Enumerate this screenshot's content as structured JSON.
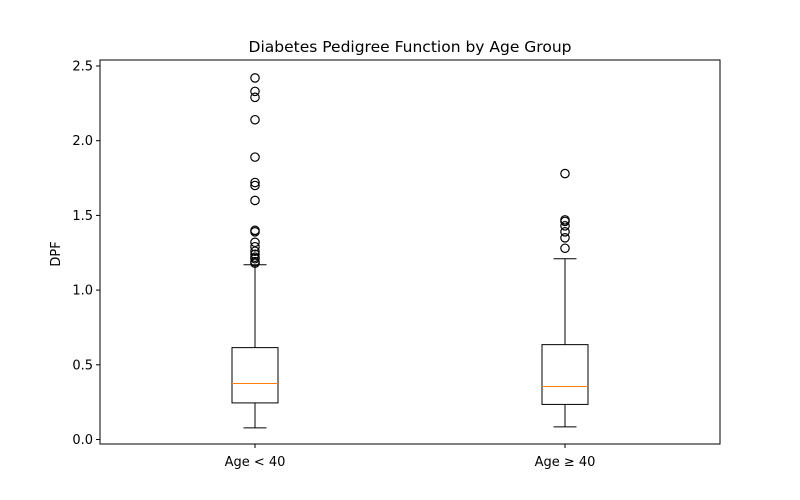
{
  "chart_data": {
    "type": "box",
    "title": "Diabetes Pedigree Function by Age Group",
    "xlabel": "",
    "ylabel": "DPF",
    "ylim": [
      -0.03,
      2.54
    ],
    "yticks": [
      "0.0",
      "0.5",
      "1.0",
      "1.5",
      "2.0",
      "2.5"
    ],
    "ytick_values": [
      0.0,
      0.5,
      1.0,
      1.5,
      2.0,
      2.5
    ],
    "grid": false,
    "colors": {
      "box": "#000000",
      "median": "#ff7f0e",
      "flier": "#000000"
    },
    "categories": [
      "Age < 40",
      "Age ≥ 40"
    ],
    "series": [
      {
        "category": "Age < 40",
        "whisker_low": 0.078,
        "q1": 0.245,
        "median": 0.375,
        "q3": 0.615,
        "whisker_high": 1.17,
        "fliers": [
          1.18,
          1.19,
          1.21,
          1.22,
          1.24,
          1.26,
          1.29,
          1.32,
          1.39,
          1.4,
          1.6,
          1.7,
          1.72,
          1.89,
          2.14,
          2.29,
          2.33,
          2.42
        ]
      },
      {
        "category": "Age ≥ 40",
        "whisker_low": 0.085,
        "q1": 0.235,
        "median": 0.355,
        "q3": 0.635,
        "whisker_high": 1.21,
        "fliers": [
          1.28,
          1.35,
          1.39,
          1.43,
          1.46,
          1.47,
          1.78
        ]
      }
    ]
  }
}
